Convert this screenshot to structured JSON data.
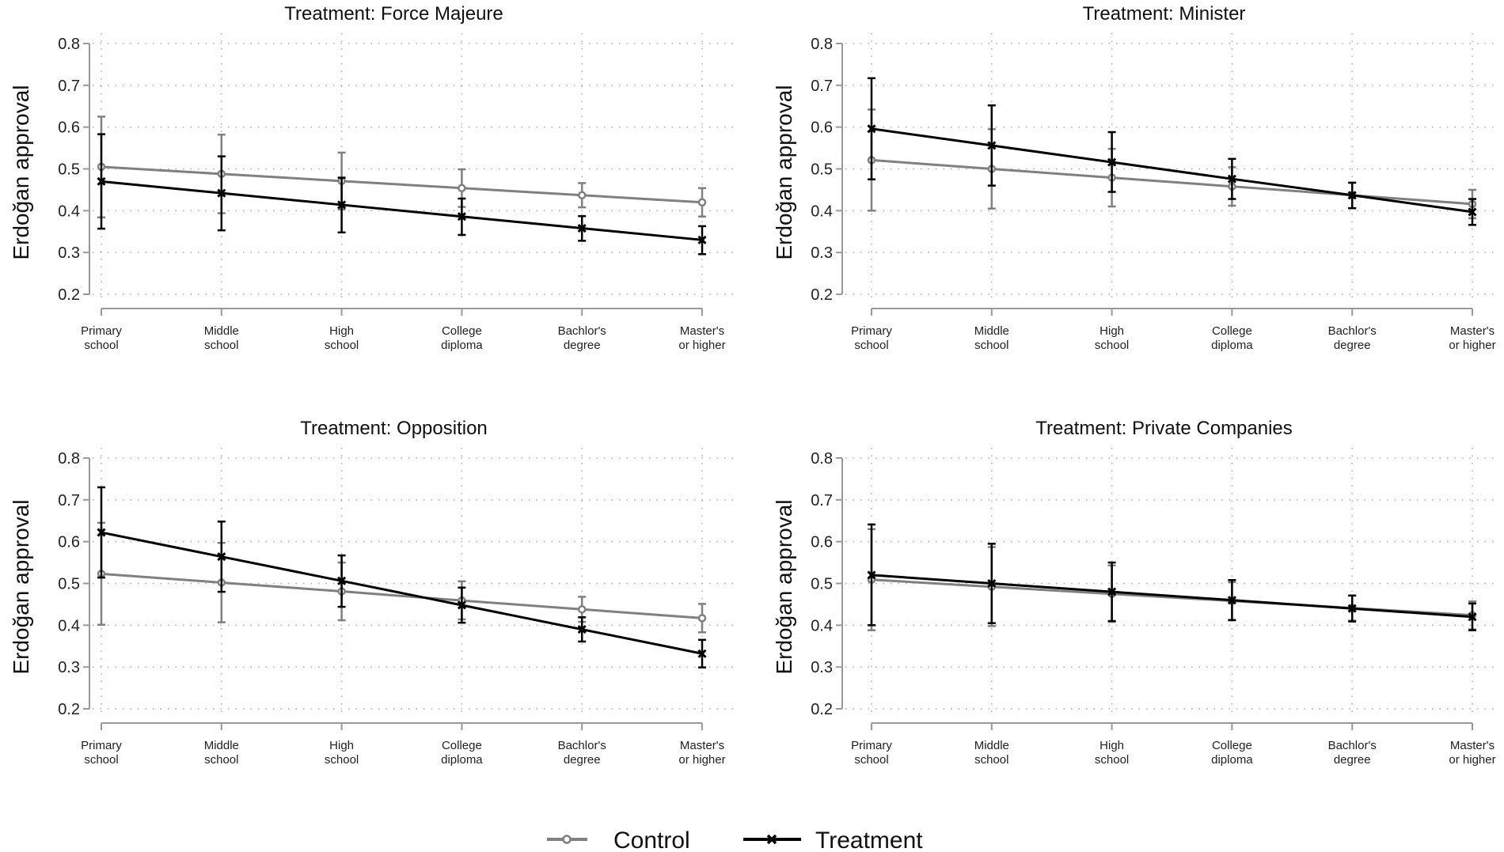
{
  "chart_data": [
    {
      "type": "line",
      "title": "Treatment: Force Majeure",
      "ylabel": "Erdoğan approval",
      "xlabel": "",
      "categories": [
        "Primary\nschool",
        "Middle\nschool",
        "High\nschool",
        "College\ndiploma",
        "Bachlor's\ndegree",
        "Master's\nor higher"
      ],
      "ylim": [
        0.2,
        0.8
      ],
      "yticks": [
        "0.2",
        "0.3",
        "0.4",
        "0.5",
        "0.6",
        "0.7",
        "0.8"
      ],
      "grid": true,
      "series": [
        {
          "name": "Control",
          "values": [
            0.505,
            0.488,
            0.471,
            0.454,
            0.437,
            0.42
          ],
          "ci_low": [
            0.384,
            0.394,
            0.403,
            0.409,
            0.408,
            0.386
          ],
          "ci_high": [
            0.625,
            0.582,
            0.539,
            0.499,
            0.466,
            0.454
          ]
        },
        {
          "name": "Treatment",
          "values": [
            0.47,
            0.442,
            0.414,
            0.386,
            0.358,
            0.33
          ],
          "ci_low": [
            0.357,
            0.353,
            0.348,
            0.342,
            0.328,
            0.296
          ],
          "ci_high": [
            0.583,
            0.53,
            0.479,
            0.429,
            0.387,
            0.363
          ]
        }
      ]
    },
    {
      "type": "line",
      "title": "Treatment: Minister",
      "ylabel": "Erdoğan approval",
      "xlabel": "",
      "categories": [
        "Primary\nschool",
        "Middle\nschool",
        "High\nschool",
        "College\ndiploma",
        "Bachlor's\ndegree",
        "Master's\nor higher"
      ],
      "ylim": [
        0.2,
        0.8
      ],
      "yticks": [
        "0.2",
        "0.3",
        "0.4",
        "0.5",
        "0.6",
        "0.7",
        "0.8"
      ],
      "grid": true,
      "series": [
        {
          "name": "Control",
          "values": [
            0.521,
            0.5,
            0.479,
            0.458,
            0.437,
            0.416
          ],
          "ci_low": [
            0.4,
            0.405,
            0.41,
            0.412,
            0.406,
            0.382
          ],
          "ci_high": [
            0.642,
            0.595,
            0.548,
            0.504,
            0.467,
            0.45
          ]
        },
        {
          "name": "Treatment",
          "values": [
            0.596,
            0.556,
            0.516,
            0.476,
            0.437,
            0.397
          ],
          "ci_low": [
            0.475,
            0.46,
            0.445,
            0.428,
            0.406,
            0.366
          ],
          "ci_high": [
            0.717,
            0.652,
            0.588,
            0.524,
            0.467,
            0.428
          ]
        }
      ]
    },
    {
      "type": "line",
      "title": "Treatment: Opposition",
      "ylabel": "Erdoğan approval",
      "xlabel": "",
      "categories": [
        "Primary\nschool",
        "Middle\nschool",
        "High\nschool",
        "College\ndiploma",
        "Bachlor's\ndegree",
        "Master's\nor higher"
      ],
      "ylim": [
        0.2,
        0.8
      ],
      "yticks": [
        "0.2",
        "0.3",
        "0.4",
        "0.5",
        "0.6",
        "0.7",
        "0.8"
      ],
      "grid": true,
      "series": [
        {
          "name": "Control",
          "values": [
            0.523,
            0.502,
            0.481,
            0.459,
            0.438,
            0.417
          ],
          "ci_low": [
            0.401,
            0.407,
            0.412,
            0.414,
            0.408,
            0.383
          ],
          "ci_high": [
            0.645,
            0.597,
            0.55,
            0.505,
            0.468,
            0.451
          ]
        },
        {
          "name": "Treatment",
          "values": [
            0.622,
            0.564,
            0.506,
            0.448,
            0.39,
            0.332
          ],
          "ci_low": [
            0.514,
            0.48,
            0.444,
            0.406,
            0.361,
            0.299
          ],
          "ci_high": [
            0.73,
            0.648,
            0.567,
            0.49,
            0.419,
            0.365
          ]
        }
      ]
    },
    {
      "type": "line",
      "title": "Treatment: Private Companies",
      "ylabel": "Erdoğan approval",
      "xlabel": "",
      "categories": [
        "Primary\nschool",
        "Middle\nschool",
        "High\nschool",
        "College\ndiploma",
        "Bachlor's\ndegree",
        "Master's\nor higher"
      ],
      "ylim": [
        0.2,
        0.8
      ],
      "yticks": [
        "0.2",
        "0.3",
        "0.4",
        "0.5",
        "0.6",
        "0.7",
        "0.8"
      ],
      "grid": true,
      "series": [
        {
          "name": "Control",
          "values": [
            0.509,
            0.492,
            0.475,
            0.458,
            0.441,
            0.424
          ],
          "ci_low": [
            0.388,
            0.398,
            0.408,
            0.413,
            0.411,
            0.39
          ],
          "ci_high": [
            0.63,
            0.587,
            0.543,
            0.503,
            0.471,
            0.457
          ]
        },
        {
          "name": "Treatment",
          "values": [
            0.52,
            0.5,
            0.48,
            0.46,
            0.44,
            0.42
          ],
          "ci_low": [
            0.4,
            0.405,
            0.41,
            0.412,
            0.409,
            0.388
          ],
          "ci_high": [
            0.641,
            0.595,
            0.55,
            0.508,
            0.471,
            0.452
          ]
        }
      ]
    }
  ],
  "legend": {
    "placement": "bottom",
    "items": [
      {
        "label": "Control",
        "marker": "circle",
        "color": "#808080"
      },
      {
        "label": "Treatment",
        "marker": "x",
        "color": "#000000"
      }
    ]
  }
}
